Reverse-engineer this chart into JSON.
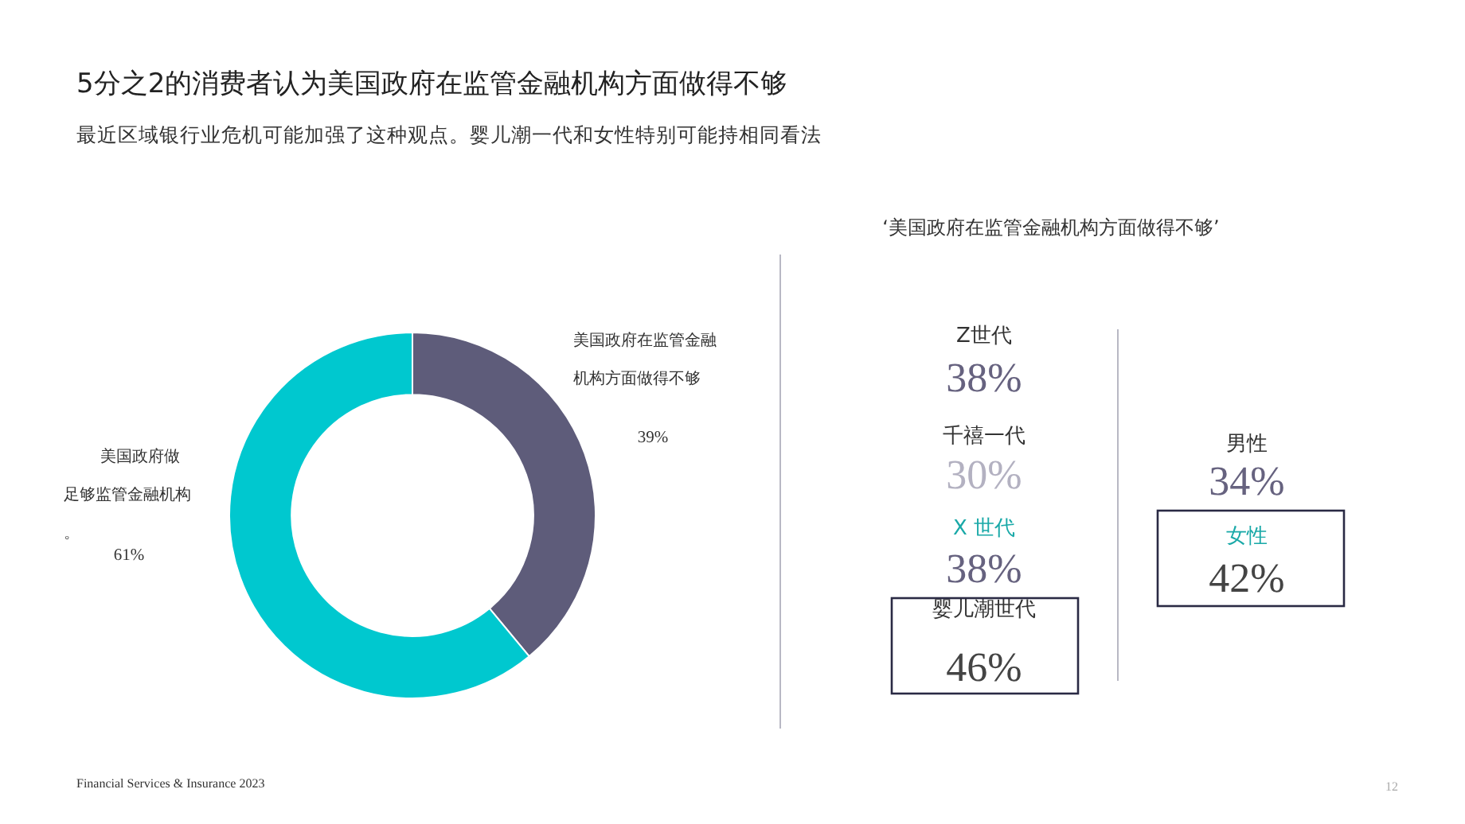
{
  "chart_data": [
    {
      "type": "donut",
      "title": "5分之2的消费者认为美国政府在监管金融机构方面做得不够",
      "subtitle": "最近区域银行业危机可能加强了这种观点。婴儿潮一代和女性特别可能持相同看法",
      "categories": [
        "美国政府在监管金融机构方面做得不够",
        "美国政府做足够监管金融机构。"
      ],
      "values": [
        39,
        61
      ],
      "colors": [
        "#5e5c7a",
        "#00c8cf"
      ],
      "value_labels": [
        "39%",
        "61%"
      ],
      "annotations": [
        "Financial Services & Insurance 2023",
        "12"
      ]
    },
    {
      "type": "other",
      "title": "‘美国政府在监管金融机构方面做得不够’",
      "annotations": [
        "Z世代",
        "38%",
        "千禧一代",
        "30%",
        "X 世代",
        "38%",
        "婴儿潮世代",
        "46%",
        "男性",
        "34%",
        "女性",
        "42%"
      ]
    }
  ]
}
